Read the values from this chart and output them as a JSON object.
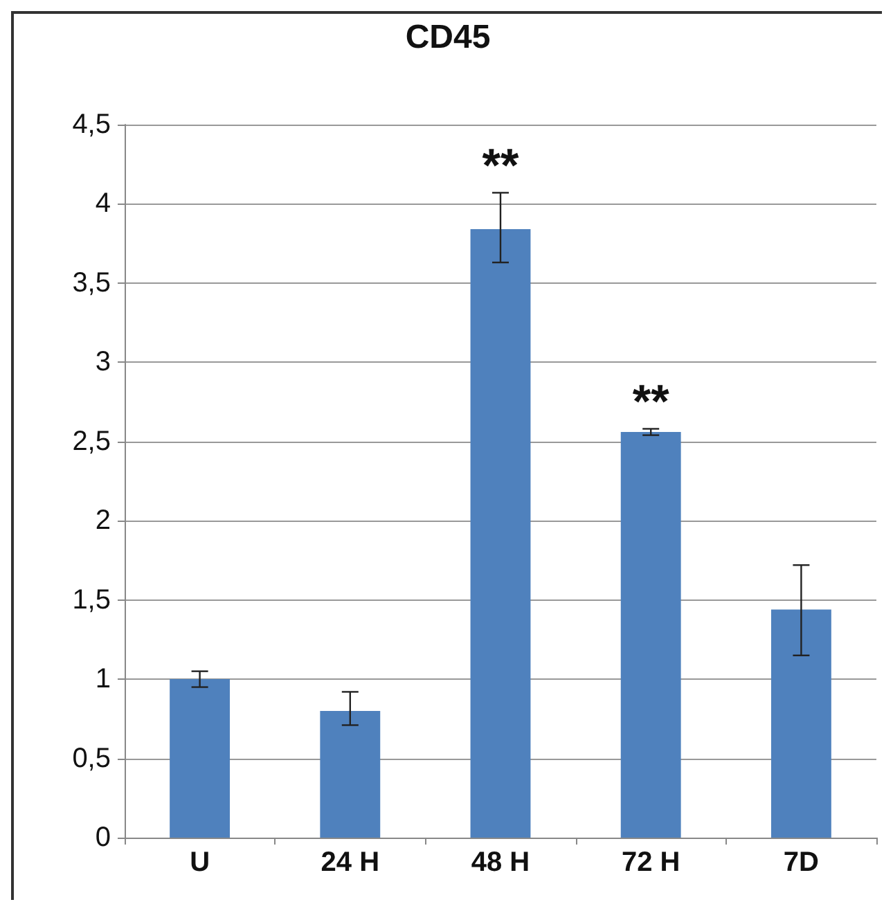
{
  "chart_data": {
    "type": "bar",
    "title": "CD45",
    "categories": [
      "U",
      "24 H",
      "48 H",
      "72 H",
      "7D"
    ],
    "values": [
      1.0,
      0.8,
      3.84,
      2.56,
      1.44
    ],
    "errors": [
      0.05,
      [
        0.71,
        0.92
      ],
      [
        3.63,
        4.07
      ],
      0.02,
      [
        1.15,
        1.72
      ]
    ],
    "color": "#4f81bd",
    "ylim": [
      0,
      4.5
    ],
    "yticks": [
      0,
      {
        "value": 0.5,
        "label": "0,5"
      },
      1,
      {
        "value": 1.5,
        "label": "1,5"
      },
      2,
      {
        "value": 2.5,
        "label": "2,5"
      },
      3,
      {
        "value": 3.5,
        "label": "3,5"
      },
      4,
      {
        "value": 4.5,
        "label": "4,5"
      }
    ],
    "grid": "y",
    "annotations": [
      {
        "text": "**",
        "x": "48 H",
        "y": 4.07
      },
      {
        "text": "**",
        "x": "72 H",
        "y": 2.58
      }
    ]
  }
}
